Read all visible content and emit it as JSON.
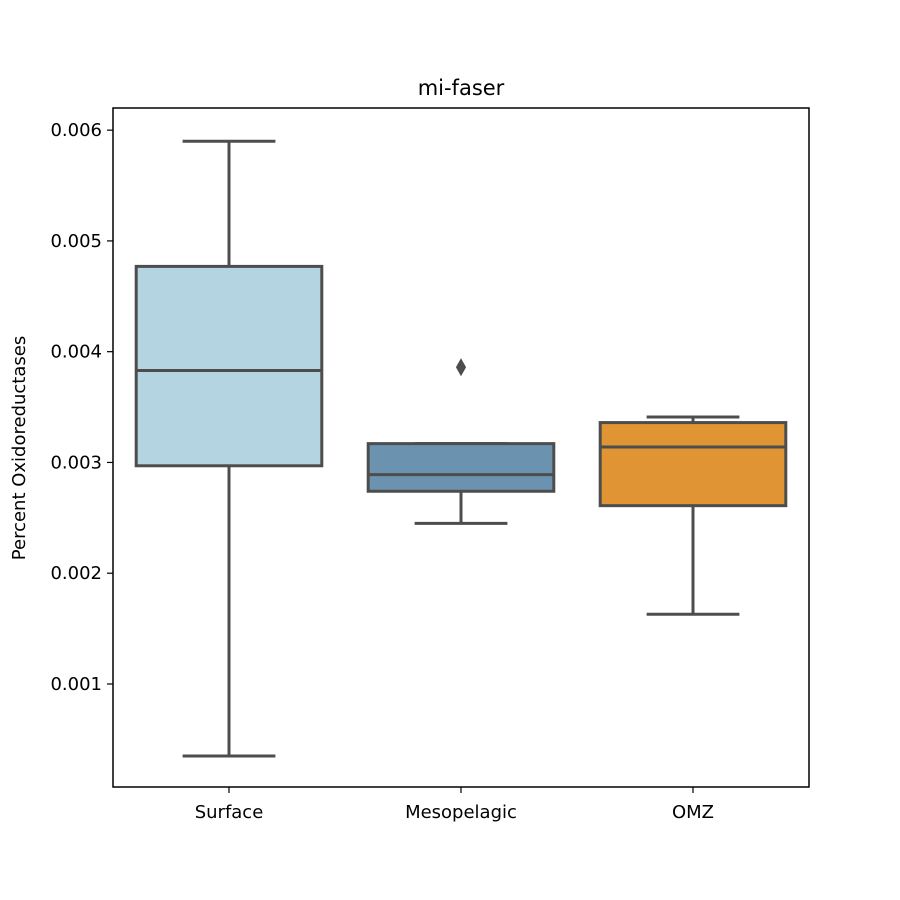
{
  "chart_data": {
    "type": "box",
    "title": "mi-faser",
    "xlabel": "",
    "ylabel": "Percent Oxidoreductases",
    "ylim": [
      7e-05,
      0.0062
    ],
    "yticks": [
      0.001,
      0.002,
      0.003,
      0.004,
      0.005,
      0.006
    ],
    "ytick_labels": [
      "0.001",
      "0.002",
      "0.003",
      "0.004",
      "0.005",
      "0.006"
    ],
    "grid": false,
    "categories": [
      "Surface",
      "Mesopelagic",
      "OMZ"
    ],
    "boxes": [
      {
        "category": "Surface",
        "whisker_low": 0.00035,
        "q1": 0.00297,
        "median": 0.00383,
        "q3": 0.00477,
        "whisker_high": 0.0059,
        "outliers": [],
        "color": "#b3d4e0"
      },
      {
        "category": "Mesopelagic",
        "whisker_low": 0.00245,
        "q1": 0.00274,
        "median": 0.00289,
        "q3": 0.00317,
        "whisker_high": 0.00317,
        "outliers": [
          0.00386
        ],
        "color": "#6b93b0"
      },
      {
        "category": "OMZ",
        "whisker_low": 0.00163,
        "q1": 0.00261,
        "median": 0.00314,
        "q3": 0.00336,
        "whisker_high": 0.00341,
        "outliers": [],
        "color": "#e09433"
      }
    ],
    "line_color": "#4d4d4d"
  }
}
